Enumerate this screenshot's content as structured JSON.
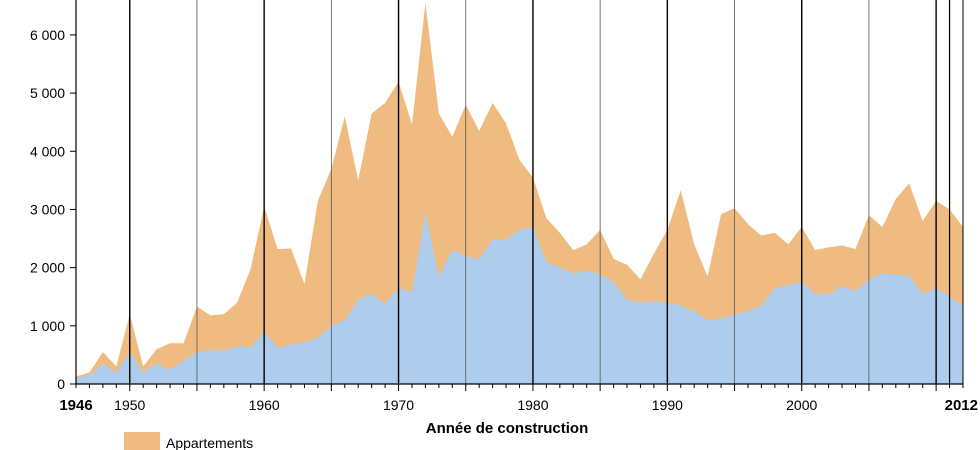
{
  "chart_data": {
    "type": "area",
    "stacked": true,
    "title": "",
    "xlabel": "Année de construction",
    "ylabel": "",
    "xlim": [
      1946,
      2012
    ],
    "ylim": [
      0,
      6600
    ],
    "y_ticks": [
      0,
      1000,
      2000,
      3000,
      4000,
      5000,
      6000
    ],
    "y_tick_labels": [
      "0",
      "1 000",
      "2 000",
      "3 000",
      "4 000",
      "5 000",
      "6 000"
    ],
    "x_ticks": [
      1946,
      1950,
      1960,
      1970,
      1980,
      1990,
      2000,
      2012
    ],
    "x_tick_labels": [
      "1946",
      "1950",
      "1960",
      "1970",
      "1980",
      "1990",
      "2000",
      "2012"
    ],
    "x_tick_bold": [
      "1946",
      "2012"
    ],
    "grid": {
      "vertical_every": 5,
      "major_every": 10
    },
    "legend": {
      "placement": "bottom-left"
    },
    "x": [
      1946,
      1947,
      1948,
      1949,
      1950,
      1951,
      1952,
      1953,
      1954,
      1955,
      1956,
      1957,
      1958,
      1959,
      1960,
      1961,
      1962,
      1963,
      1964,
      1965,
      1966,
      1967,
      1968,
      1969,
      1970,
      1971,
      1972,
      1973,
      1974,
      1975,
      1976,
      1977,
      1978,
      1979,
      1980,
      1981,
      1982,
      1983,
      1984,
      1985,
      1986,
      1987,
      1988,
      1989,
      1990,
      1991,
      1992,
      1993,
      1994,
      1995,
      1996,
      1997,
      1998,
      1999,
      2000,
      2001,
      2002,
      2003,
      2004,
      2005,
      2006,
      2007,
      2008,
      2009,
      2010,
      2011,
      2012
    ],
    "series": [
      {
        "name": "",
        "color": "#aecdec",
        "values": [
          100,
          150,
          350,
          200,
          550,
          200,
          350,
          250,
          400,
          550,
          580,
          580,
          650,
          630,
          900,
          620,
          680,
          720,
          800,
          1000,
          1100,
          1450,
          1550,
          1380,
          1650,
          1580,
          2950,
          1850,
          2300,
          2200,
          2150,
          2480,
          2480,
          2650,
          2700,
          2100,
          2000,
          1900,
          1950,
          1880,
          1750,
          1450,
          1400,
          1420,
          1400,
          1350,
          1250,
          1100,
          1120,
          1200,
          1250,
          1350,
          1650,
          1700,
          1750,
          1550,
          1550,
          1680,
          1600,
          1800,
          1900,
          1880,
          1850,
          1550,
          1650,
          1500,
          1350
        ]
      },
      {
        "name": "Appartements",
        "color": "#f0bb80",
        "values": [
          30,
          50,
          200,
          100,
          650,
          100,
          250,
          450,
          300,
          780,
          600,
          620,
          750,
          1350,
          2150,
          1700,
          1650,
          1000,
          2350,
          2700,
          3500,
          2050,
          3100,
          3450,
          3550,
          2880,
          3600,
          2800,
          1950,
          2600,
          2200,
          2350,
          2000,
          1200,
          850,
          750,
          600,
          400,
          450,
          770,
          400,
          600,
          400,
          820,
          1250,
          1980,
          1150,
          750,
          1800,
          1820,
          1500,
          1200,
          950,
          700,
          950,
          750,
          800,
          700,
          720,
          1100,
          800,
          1300,
          1600,
          1250,
          1500,
          1500,
          1350
        ]
      }
    ]
  }
}
